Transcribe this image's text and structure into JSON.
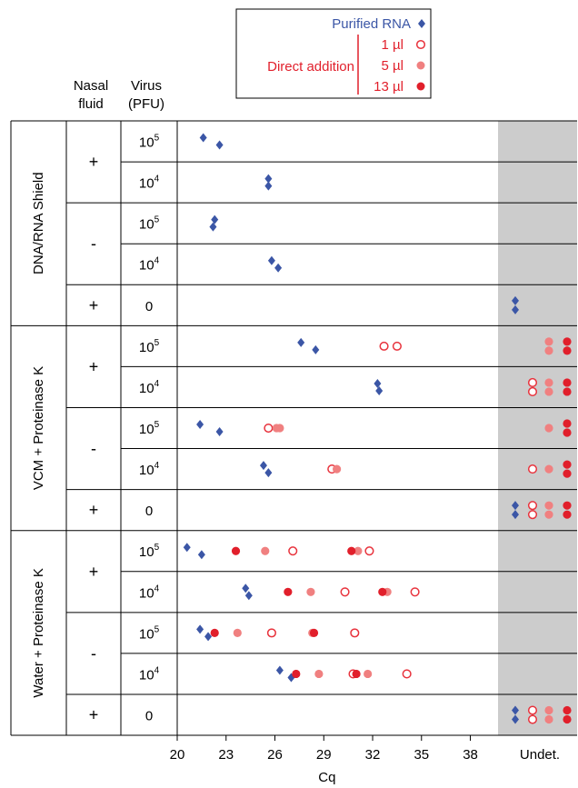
{
  "chart_data": {
    "type": "scatter",
    "xlabel": "Cq",
    "x_ticks": [
      20,
      23,
      26,
      29,
      32,
      35,
      38
    ],
    "x_range": [
      20,
      39.7
    ],
    "undetermined_label": "Undet.",
    "column_headers": {
      "nasal": [
        "Nasal",
        "fluid"
      ],
      "virus": [
        "Virus",
        "(PFU)"
      ]
    },
    "legend": {
      "purified": "Purified RNA",
      "direct": "Direct addition",
      "volumes": [
        "1 µl",
        "5 µl",
        "13 µl"
      ]
    },
    "colors": {
      "purified": "#3b56a6",
      "v1": "#e8323c",
      "v5": "#f08080",
      "v13": "#e11f2b",
      "undet_band": "#cccccc"
    },
    "groups": [
      {
        "name": "DNA/RNA Shield",
        "nasal_blocks": [
          {
            "label": "+",
            "rows": 2
          },
          {
            "label": "-",
            "rows": 2
          },
          {
            "label": "+",
            "rows": 1
          }
        ]
      },
      {
        "name": "VCM + Proteinase K",
        "nasal_blocks": [
          {
            "label": "+",
            "rows": 2
          },
          {
            "label": "-",
            "rows": 2
          },
          {
            "label": "+",
            "rows": 1
          }
        ]
      },
      {
        "name": "Water + Proteinase K",
        "nasal_blocks": [
          {
            "label": "+",
            "rows": 2
          },
          {
            "label": "-",
            "rows": 2
          },
          {
            "label": "+",
            "rows": 1
          }
        ]
      }
    ],
    "rows": [
      {
        "virus_base": "10",
        "virus_exp": "5",
        "purified": [
          21.6,
          22.6
        ],
        "v1": [],
        "v5": [],
        "v13": [],
        "undet": []
      },
      {
        "virus_base": "10",
        "virus_exp": "4",
        "purified": [
          25.6,
          25.6
        ],
        "v1": [],
        "v5": [],
        "v13": [],
        "undet": []
      },
      {
        "virus_base": "10",
        "virus_exp": "5",
        "purified": [
          22.3,
          22.2
        ],
        "v1": [],
        "v5": [],
        "v13": [],
        "undet": []
      },
      {
        "virus_base": "10",
        "virus_exp": "4",
        "purified": [
          25.8,
          26.2
        ],
        "v1": [],
        "v5": [],
        "v13": [],
        "undet": []
      },
      {
        "virus_base": "0",
        "virus_exp": "",
        "purified": [],
        "v1": [],
        "v5": [],
        "v13": [],
        "undet": [
          {
            "series": "purified",
            "n": 2
          }
        ]
      },
      {
        "virus_base": "10",
        "virus_exp": "5",
        "purified": [
          27.6,
          28.5
        ],
        "v1": [
          32.7,
          33.5
        ],
        "v5": [],
        "v13": [],
        "undet": [
          {
            "series": "v5",
            "n": 2
          },
          {
            "series": "v13",
            "n": 2
          }
        ]
      },
      {
        "virus_base": "10",
        "virus_exp": "4",
        "purified": [
          32.3,
          32.4
        ],
        "v1": [],
        "v5": [],
        "v13": [],
        "undet": [
          {
            "series": "v1",
            "n": 2
          },
          {
            "series": "v5",
            "n": 2
          },
          {
            "series": "v13",
            "n": 2
          }
        ]
      },
      {
        "virus_base": "10",
        "virus_exp": "5",
        "purified": [
          21.4,
          22.6
        ],
        "v1": [
          25.6
        ],
        "v5": [
          26.3,
          26.1
        ],
        "v13": [],
        "undet": [
          {
            "series": "v5",
            "n": 1
          },
          {
            "series": "v13",
            "n": 2
          }
        ]
      },
      {
        "virus_base": "10",
        "virus_exp": "4",
        "purified": [
          25.3,
          25.6
        ],
        "v1": [
          29.5
        ],
        "v5": [
          29.8
        ],
        "v13": [],
        "undet": [
          {
            "series": "v1",
            "n": 1
          },
          {
            "series": "v5",
            "n": 1
          },
          {
            "series": "v13",
            "n": 2
          }
        ]
      },
      {
        "virus_base": "0",
        "virus_exp": "",
        "purified": [],
        "v1": [],
        "v5": [],
        "v13": [],
        "undet": [
          {
            "series": "purified",
            "n": 2
          },
          {
            "series": "v1",
            "n": 2
          },
          {
            "series": "v5",
            "n": 2
          },
          {
            "series": "v13",
            "n": 2
          }
        ]
      },
      {
        "virus_base": "10",
        "virus_exp": "5",
        "purified": [
          20.6,
          21.5
        ],
        "v1": [
          27.1,
          31.8
        ],
        "v5": [
          25.4,
          31.1
        ],
        "v13": [
          23.6,
          30.7
        ],
        "undet": []
      },
      {
        "virus_base": "10",
        "virus_exp": "4",
        "purified": [
          24.2,
          24.4
        ],
        "v1": [
          30.3,
          34.6
        ],
        "v5": [
          28.2,
          32.9
        ],
        "v13": [
          26.8,
          32.6
        ],
        "undet": []
      },
      {
        "virus_base": "10",
        "virus_exp": "5",
        "purified": [
          21.4,
          21.9
        ],
        "v1": [
          25.8,
          30.9
        ],
        "v5": [
          23.7,
          28.3
        ],
        "v13": [
          22.3,
          28.4
        ],
        "undet": []
      },
      {
        "virus_base": "10",
        "virus_exp": "4",
        "purified": [
          26.3,
          27.0
        ],
        "v1": [
          30.8,
          34.1
        ],
        "v5": [
          28.7,
          31.7
        ],
        "v13": [
          27.3,
          31.0
        ],
        "undet": []
      },
      {
        "virus_base": "0",
        "virus_exp": "",
        "purified": [],
        "v1": [],
        "v5": [],
        "v13": [],
        "undet": [
          {
            "series": "purified",
            "n": 2
          },
          {
            "series": "v1",
            "n": 2
          },
          {
            "series": "v5",
            "n": 2
          },
          {
            "series": "v13",
            "n": 2
          }
        ]
      }
    ]
  }
}
